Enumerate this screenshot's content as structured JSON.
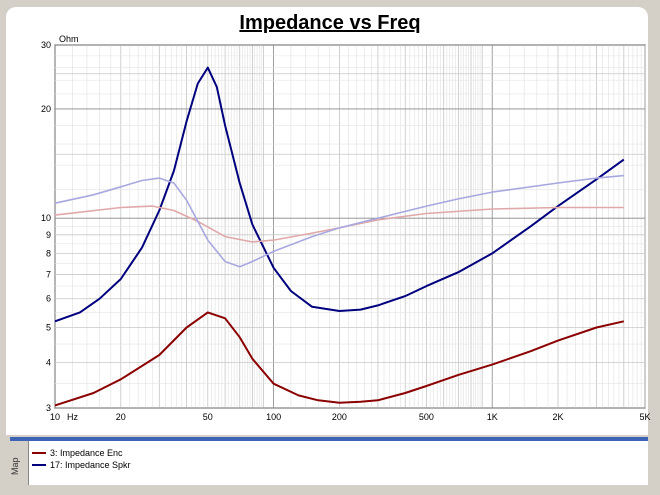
{
  "chart_data": {
    "type": "line",
    "title": "Impedance vs Freq",
    "y_unit_label": "Ohm",
    "x_unit_label": "Hz",
    "x_scale": "log",
    "y_scale": "log",
    "xlim": [
      10,
      5000
    ],
    "ylim": [
      3,
      30
    ],
    "grid": true,
    "x_ticks": [
      {
        "value": 10,
        "label": "10"
      },
      {
        "value": 20,
        "label": "20"
      },
      {
        "value": 50,
        "label": "50"
      },
      {
        "value": 100,
        "label": "100"
      },
      {
        "value": 200,
        "label": "200"
      },
      {
        "value": 500,
        "label": "500"
      },
      {
        "value": 1000,
        "label": "1K"
      },
      {
        "value": 2000,
        "label": "2K"
      },
      {
        "value": 5000,
        "label": "5K"
      }
    ],
    "y_ticks": [
      {
        "value": 3,
        "label": "3"
      },
      {
        "value": 4,
        "label": "4"
      },
      {
        "value": 5,
        "label": "5"
      },
      {
        "value": 6,
        "label": "6"
      },
      {
        "value": 7,
        "label": "7"
      },
      {
        "value": 8,
        "label": "8"
      },
      {
        "value": 9,
        "label": "9"
      },
      {
        "value": 10,
        "label": "10"
      },
      {
        "value": 20,
        "label": "20"
      },
      {
        "value": 30,
        "label": "30"
      }
    ],
    "series": [
      {
        "name": "3: Impedance Enc",
        "color": "#8b0000",
        "values": [
          [
            10,
            3.05
          ],
          [
            15,
            3.3
          ],
          [
            20,
            3.6
          ],
          [
            30,
            4.2
          ],
          [
            40,
            5.0
          ],
          [
            50,
            5.5
          ],
          [
            60,
            5.3
          ],
          [
            70,
            4.7
          ],
          [
            80,
            4.1
          ],
          [
            100,
            3.5
          ],
          [
            130,
            3.25
          ],
          [
            160,
            3.15
          ],
          [
            200,
            3.1
          ],
          [
            250,
            3.12
          ],
          [
            300,
            3.15
          ],
          [
            400,
            3.3
          ],
          [
            500,
            3.45
          ],
          [
            700,
            3.7
          ],
          [
            1000,
            3.95
          ],
          [
            1500,
            4.3
          ],
          [
            2000,
            4.6
          ],
          [
            3000,
            5.0
          ],
          [
            4000,
            5.2
          ]
        ]
      },
      {
        "name": "17: Impedance Spkr",
        "color": "#00007f",
        "values": [
          [
            10,
            5.2
          ],
          [
            13,
            5.5
          ],
          [
            16,
            6.0
          ],
          [
            20,
            6.8
          ],
          [
            25,
            8.3
          ],
          [
            30,
            10.5
          ],
          [
            35,
            13.5
          ],
          [
            40,
            18.5
          ],
          [
            45,
            23.5
          ],
          [
            50,
            26.0
          ],
          [
            55,
            23.0
          ],
          [
            60,
            18.0
          ],
          [
            70,
            12.5
          ],
          [
            80,
            9.6
          ],
          [
            100,
            7.3
          ],
          [
            120,
            6.3
          ],
          [
            150,
            5.7
          ],
          [
            200,
            5.55
          ],
          [
            250,
            5.6
          ],
          [
            300,
            5.75
          ],
          [
            400,
            6.1
          ],
          [
            500,
            6.5
          ],
          [
            700,
            7.1
          ],
          [
            1000,
            8.0
          ],
          [
            1500,
            9.5
          ],
          [
            2000,
            10.8
          ],
          [
            3000,
            12.8
          ],
          [
            4000,
            14.5
          ]
        ]
      },
      {
        "name": "",
        "color": "#e0a8a8",
        "values": [
          [
            10,
            10.2
          ],
          [
            20,
            10.7
          ],
          [
            28,
            10.8
          ],
          [
            35,
            10.5
          ],
          [
            45,
            9.8
          ],
          [
            60,
            8.9
          ],
          [
            80,
            8.6
          ],
          [
            100,
            8.7
          ],
          [
            150,
            9.1
          ],
          [
            200,
            9.4
          ],
          [
            300,
            9.9
          ],
          [
            500,
            10.3
          ],
          [
            1000,
            10.6
          ],
          [
            2000,
            10.7
          ],
          [
            4000,
            10.7
          ]
        ]
      },
      {
        "name": "",
        "color": "#a8a8e0",
        "values": [
          [
            10,
            11.0
          ],
          [
            15,
            11.6
          ],
          [
            20,
            12.2
          ],
          [
            25,
            12.7
          ],
          [
            30,
            12.9
          ],
          [
            35,
            12.5
          ],
          [
            40,
            11.2
          ],
          [
            45,
            9.8
          ],
          [
            50,
            8.7
          ],
          [
            60,
            7.6
          ],
          [
            70,
            7.35
          ],
          [
            80,
            7.6
          ],
          [
            100,
            8.1
          ],
          [
            150,
            8.9
          ],
          [
            200,
            9.4
          ],
          [
            300,
            10.0
          ],
          [
            500,
            10.8
          ],
          [
            700,
            11.3
          ],
          [
            1000,
            11.8
          ],
          [
            2000,
            12.5
          ],
          [
            3000,
            12.9
          ],
          [
            4000,
            13.1
          ]
        ]
      }
    ],
    "legend": {
      "position": "bottom",
      "entries": [
        "3: Impedance Enc",
        "17: Impedance Spkr"
      ]
    }
  },
  "map_tab_label": "Map"
}
